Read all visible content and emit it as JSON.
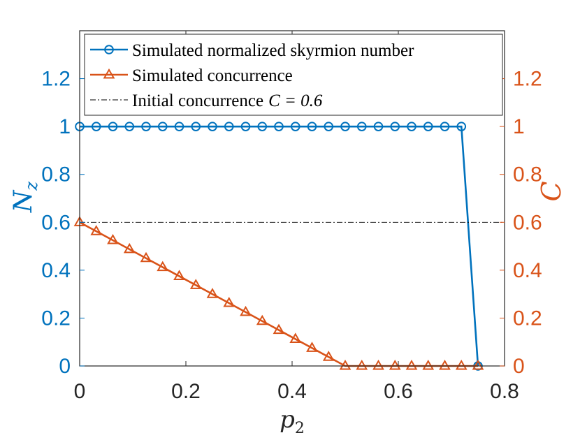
{
  "chart_data": {
    "type": "line",
    "title": "",
    "xlabel": "p",
    "xlabel_sub": "2",
    "ylabel_left": "N",
    "ylabel_left_sub": "z",
    "ylabel_right": "C",
    "xlim": [
      0,
      0.8
    ],
    "ylim_left": [
      0,
      1.4
    ],
    "ylim_right": [
      0,
      1.4
    ],
    "x_ticks": [
      "0",
      "0.2",
      "0.4",
      "0.6",
      "0.8"
    ],
    "y_ticks_left": [
      "0",
      "0.2",
      "0.4",
      "0.6",
      "0.8",
      "1",
      "1.2"
    ],
    "y_ticks_right": [
      "0",
      "0.2",
      "0.4",
      "0.6",
      "0.8",
      "1",
      "1.2"
    ],
    "grid": false,
    "legend_position": "top",
    "series": [
      {
        "name": "Simulated normalized skyrmion number",
        "axis": "left",
        "marker": "circle",
        "color": "#0072BD",
        "x": [
          0,
          0.03125,
          0.0625,
          0.09375,
          0.125,
          0.15625,
          0.1875,
          0.21875,
          0.25,
          0.28125,
          0.3125,
          0.34375,
          0.375,
          0.40625,
          0.4375,
          0.46875,
          0.5,
          0.53125,
          0.5625,
          0.59375,
          0.625,
          0.65625,
          0.6875,
          0.71875,
          0.75
        ],
        "values": [
          1,
          1,
          1,
          1,
          1,
          1,
          1,
          1,
          1,
          1,
          1,
          1,
          1,
          1,
          1,
          1,
          1,
          1,
          1,
          1,
          1,
          1,
          1,
          1,
          0
        ]
      },
      {
        "name": "Simulated concurrence",
        "axis": "right",
        "marker": "triangle",
        "color": "#D95319",
        "x": [
          0,
          0.03125,
          0.0625,
          0.09375,
          0.125,
          0.15625,
          0.1875,
          0.21875,
          0.25,
          0.28125,
          0.3125,
          0.34375,
          0.375,
          0.40625,
          0.4375,
          0.46875,
          0.5,
          0.53125,
          0.5625,
          0.59375,
          0.625,
          0.65625,
          0.6875,
          0.71875,
          0.75
        ],
        "values": [
          0.6,
          0.5625,
          0.525,
          0.4875,
          0.45,
          0.4125,
          0.375,
          0.3375,
          0.3,
          0.2625,
          0.225,
          0.1875,
          0.15,
          0.1125,
          0.075,
          0.0375,
          0,
          0,
          0,
          0,
          0,
          0,
          0,
          0,
          0
        ]
      },
      {
        "name": "Initial concurrence",
        "name_math": "C = 0.6",
        "axis": "right",
        "style": "dash-dot",
        "color": "#000000",
        "x": [
          0,
          0.8
        ],
        "values": [
          0.6,
          0.6
        ]
      }
    ]
  }
}
